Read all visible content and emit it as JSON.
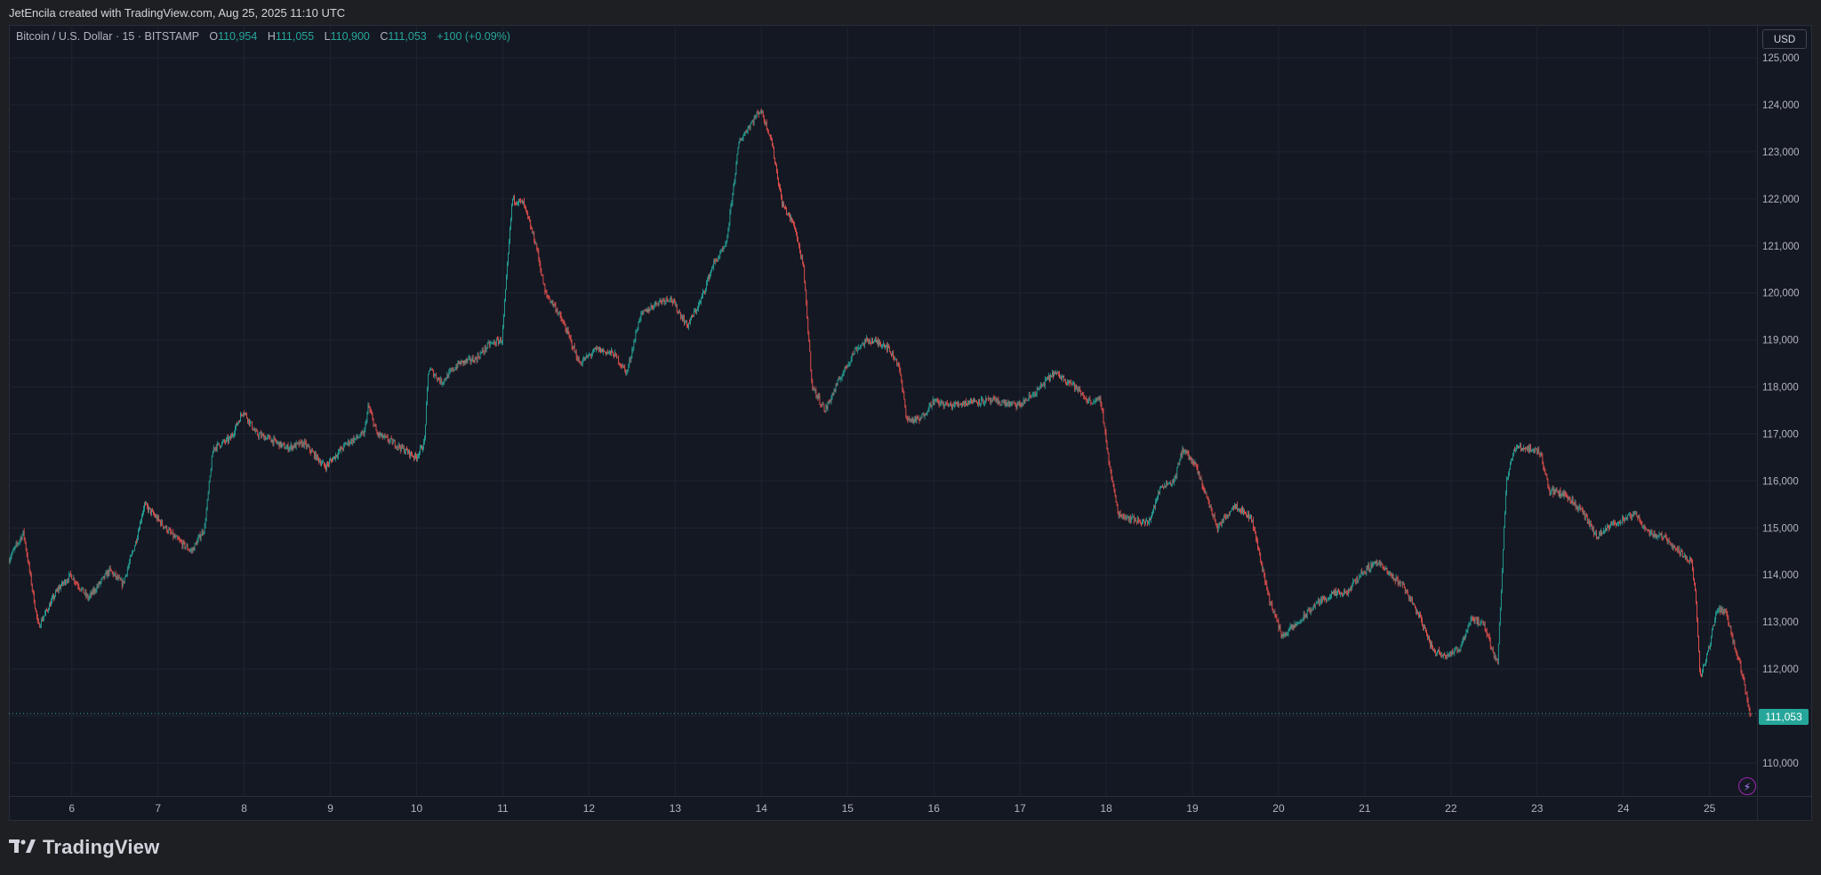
{
  "header": {
    "credit": "JetEncila created with TradingView.com, Aug 25, 2025 11:10 UTC"
  },
  "legend": {
    "symbol": "Bitcoin / U.S. Dollar · 15 · BITSTAMP",
    "open_label": "O",
    "open": "110,954",
    "high_label": "H",
    "high": "111,055",
    "low_label": "L",
    "low": "110,900",
    "close_label": "C",
    "close": "111,053",
    "change": "+100 (+0.09%)"
  },
  "currency_button": "USD",
  "last_price": "111,053",
  "footer": {
    "brand": "TradingView"
  },
  "colors": {
    "up": "#26a69a",
    "down": "#ef5350",
    "background": "#141823",
    "grid": "#1f2430",
    "text": "#b2b5be"
  },
  "icons": [
    "tradingview-logo-icon",
    "lightning-icon"
  ],
  "chart_data": {
    "type": "candlestick",
    "interval": "15",
    "currency": "USD",
    "grid": true,
    "ylim": [
      109300,
      125700
    ],
    "xlim": [
      5.27,
      25.55
    ],
    "y_ticks": [
      {
        "value": 110000,
        "label": "110,000"
      },
      {
        "value": 111000,
        "label": "111,000"
      },
      {
        "value": 112000,
        "label": "112,000"
      },
      {
        "value": 113000,
        "label": "113,000"
      },
      {
        "value": 114000,
        "label": "114,000"
      },
      {
        "value": 115000,
        "label": "115,000"
      },
      {
        "value": 116000,
        "label": "116,000"
      },
      {
        "value": 117000,
        "label": "117,000"
      },
      {
        "value": 118000,
        "label": "118,000"
      },
      {
        "value": 119000,
        "label": "119,000"
      },
      {
        "value": 120000,
        "label": "120,000"
      },
      {
        "value": 121000,
        "label": "121,000"
      },
      {
        "value": 122000,
        "label": "122,000"
      },
      {
        "value": 123000,
        "label": "123,000"
      },
      {
        "value": 124000,
        "label": "124,000"
      },
      {
        "value": 125000,
        "label": "125,000"
      }
    ],
    "x_ticks": [
      {
        "value": 6,
        "label": "6"
      },
      {
        "value": 7,
        "label": "7"
      },
      {
        "value": 8,
        "label": "8"
      },
      {
        "value": 9,
        "label": "9"
      },
      {
        "value": 10,
        "label": "10"
      },
      {
        "value": 11,
        "label": "11"
      },
      {
        "value": 12,
        "label": "12"
      },
      {
        "value": 13,
        "label": "13"
      },
      {
        "value": 14,
        "label": "14"
      },
      {
        "value": 15,
        "label": "15"
      },
      {
        "value": 16,
        "label": "16"
      },
      {
        "value": 17,
        "label": "17"
      },
      {
        "value": 18,
        "label": "18"
      },
      {
        "value": 19,
        "label": "19"
      },
      {
        "value": 20,
        "label": "20"
      },
      {
        "value": 21,
        "label": "21"
      },
      {
        "value": 22,
        "label": "22"
      },
      {
        "value": 23,
        "label": "23"
      },
      {
        "value": 24,
        "label": "24"
      },
      {
        "value": 25,
        "label": "25"
      }
    ],
    "price_path": [
      [
        5.27,
        114300
      ],
      [
        5.45,
        114900
      ],
      [
        5.62,
        112900
      ],
      [
        5.85,
        113700
      ],
      [
        6.0,
        114000
      ],
      [
        6.2,
        113500
      ],
      [
        6.45,
        114100
      ],
      [
        6.6,
        113800
      ],
      [
        6.75,
        114700
      ],
      [
        6.85,
        115500
      ],
      [
        7.0,
        115200
      ],
      [
        7.2,
        114800
      ],
      [
        7.4,
        114500
      ],
      [
        7.55,
        115000
      ],
      [
        7.65,
        116700
      ],
      [
        7.85,
        116900
      ],
      [
        8.0,
        117500
      ],
      [
        8.15,
        117000
      ],
      [
        8.3,
        116900
      ],
      [
        8.5,
        116700
      ],
      [
        8.7,
        116800
      ],
      [
        8.95,
        116300
      ],
      [
        9.2,
        116800
      ],
      [
        9.4,
        117000
      ],
      [
        9.45,
        117600
      ],
      [
        9.55,
        117000
      ],
      [
        9.75,
        116800
      ],
      [
        10.0,
        116500
      ],
      [
        10.1,
        116800
      ],
      [
        10.15,
        118400
      ],
      [
        10.3,
        118100
      ],
      [
        10.5,
        118500
      ],
      [
        10.7,
        118600
      ],
      [
        10.85,
        118900
      ],
      [
        11.0,
        119000
      ],
      [
        11.12,
        122000
      ],
      [
        11.25,
        121900
      ],
      [
        11.4,
        121000
      ],
      [
        11.5,
        120000
      ],
      [
        11.62,
        119700
      ],
      [
        11.75,
        119200
      ],
      [
        11.9,
        118500
      ],
      [
        12.1,
        118800
      ],
      [
        12.3,
        118700
      ],
      [
        12.45,
        118300
      ],
      [
        12.6,
        119500
      ],
      [
        12.8,
        119800
      ],
      [
        12.95,
        119900
      ],
      [
        13.15,
        119300
      ],
      [
        13.3,
        119800
      ],
      [
        13.45,
        120600
      ],
      [
        13.6,
        121000
      ],
      [
        13.75,
        123200
      ],
      [
        13.85,
        123500
      ],
      [
        14.0,
        123900
      ],
      [
        14.12,
        123300
      ],
      [
        14.25,
        121900
      ],
      [
        14.4,
        121400
      ],
      [
        14.5,
        120500
      ],
      [
        14.6,
        118000
      ],
      [
        14.75,
        117500
      ],
      [
        14.9,
        118100
      ],
      [
        15.1,
        118800
      ],
      [
        15.25,
        119000
      ],
      [
        15.45,
        118900
      ],
      [
        15.6,
        118500
      ],
      [
        15.7,
        117300
      ],
      [
        15.85,
        117300
      ],
      [
        16.0,
        117700
      ],
      [
        16.2,
        117600
      ],
      [
        16.45,
        117700
      ],
      [
        16.7,
        117700
      ],
      [
        17.0,
        117600
      ],
      [
        17.2,
        117900
      ],
      [
        17.4,
        118300
      ],
      [
        17.6,
        118100
      ],
      [
        17.8,
        117700
      ],
      [
        17.95,
        117700
      ],
      [
        18.05,
        116300
      ],
      [
        18.15,
        115300
      ],
      [
        18.3,
        115200
      ],
      [
        18.5,
        115100
      ],
      [
        18.65,
        115900
      ],
      [
        18.8,
        116000
      ],
      [
        18.9,
        116700
      ],
      [
        19.05,
        116300
      ],
      [
        19.15,
        115800
      ],
      [
        19.3,
        115000
      ],
      [
        19.5,
        115500
      ],
      [
        19.7,
        115200
      ],
      [
        19.9,
        113500
      ],
      [
        20.05,
        112700
      ],
      [
        20.25,
        113000
      ],
      [
        20.45,
        113400
      ],
      [
        20.65,
        113600
      ],
      [
        20.8,
        113600
      ],
      [
        20.95,
        114000
      ],
      [
        21.15,
        114300
      ],
      [
        21.3,
        114000
      ],
      [
        21.45,
        113800
      ],
      [
        21.65,
        113100
      ],
      [
        21.8,
        112400
      ],
      [
        21.95,
        112300
      ],
      [
        22.1,
        112400
      ],
      [
        22.25,
        113100
      ],
      [
        22.4,
        112900
      ],
      [
        22.55,
        112100
      ],
      [
        22.6,
        114000
      ],
      [
        22.65,
        116000
      ],
      [
        22.75,
        116700
      ],
      [
        22.9,
        116700
      ],
      [
        23.05,
        116600
      ],
      [
        23.15,
        115800
      ],
      [
        23.35,
        115700
      ],
      [
        23.55,
        115300
      ],
      [
        23.7,
        114800
      ],
      [
        23.9,
        115100
      ],
      [
        24.05,
        115200
      ],
      [
        24.15,
        115300
      ],
      [
        24.3,
        114900
      ],
      [
        24.5,
        114800
      ],
      [
        24.65,
        114500
      ],
      [
        24.8,
        114300
      ],
      [
        24.85,
        113500
      ],
      [
        24.9,
        111800
      ],
      [
        25.0,
        112400
      ],
      [
        25.1,
        113300
      ],
      [
        25.2,
        113200
      ],
      [
        25.3,
        112500
      ],
      [
        25.4,
        111800
      ],
      [
        25.48,
        111053
      ]
    ],
    "annotations": [
      {
        "type": "last-price-line",
        "value": 111053,
        "label": "111,053"
      }
    ]
  }
}
